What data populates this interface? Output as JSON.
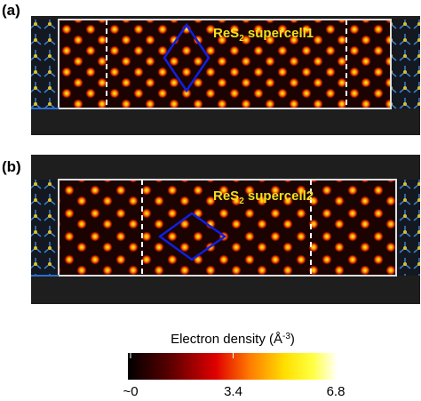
{
  "panels": [
    {
      "label": "(a)",
      "title_parts": [
        "ReS",
        "2",
        " supercell1"
      ]
    },
    {
      "label": "(b)",
      "title_parts": [
        "ReS",
        "2",
        " supercell2"
      ]
    }
  ],
  "colorbar": {
    "title_parts": [
      "Electron density (Å",
      "-3",
      ")"
    ],
    "lim": [
      0,
      6.8
    ],
    "ticks": [
      {
        "value": 0,
        "label": "~0"
      },
      3.4,
      6.8
    ]
  }
}
